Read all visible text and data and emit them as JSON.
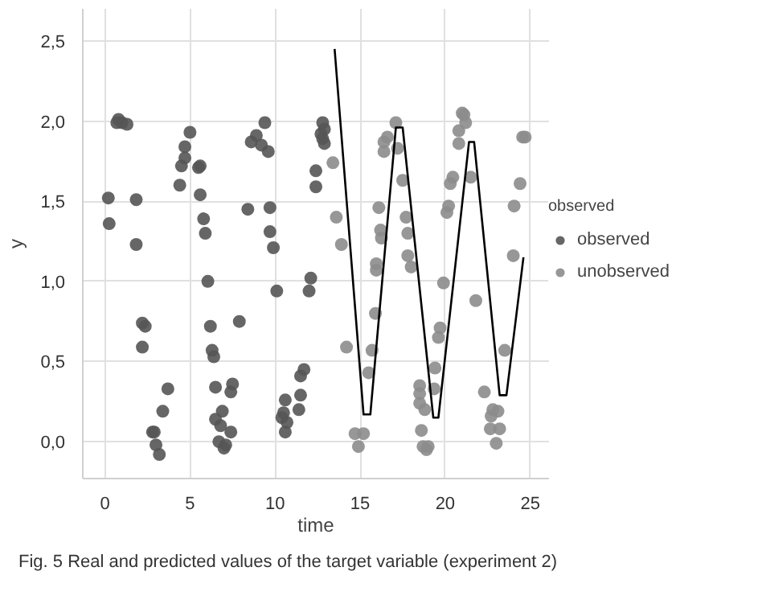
{
  "chart_data": {
    "type": "scatter",
    "xlabel": "time",
    "ylabel": "y",
    "legend_title": "observed",
    "annotations": [
      "Fig. 5 Real and predicted values of the target variable (experiment 2)"
    ],
    "xlim": [
      -1.3,
      26.1
    ],
    "ylim": [
      -0.23,
      2.7
    ],
    "xticks": [
      0,
      5,
      10,
      15,
      20,
      25
    ],
    "yticks": [
      {
        "value": 0,
        "label": "0,0"
      },
      {
        "value": 0.5,
        "label": "0,5"
      },
      {
        "value": 1,
        "label": "1,0"
      },
      {
        "value": 1.5,
        "label": "1,5"
      },
      {
        "value": 2,
        "label": "2,0"
      },
      {
        "value": 2.5,
        "label": "2,5"
      }
    ],
    "grid": true,
    "legend": "right",
    "marker": "circle",
    "series": [
      {
        "name": "observed",
        "color": "#555555",
        "x": [
          0.2,
          0.25,
          0.7,
          1.0,
          1.3,
          0.8,
          1.84,
          1.84,
          2.2,
          2.37,
          2.2,
          2.8,
          2.9,
          3.0,
          3.2,
          3.4,
          3.7,
          4.4,
          4.5,
          4.7,
          4.7,
          5.0,
          5.5,
          5.6,
          5.6,
          5.8,
          5.9,
          6.05,
          6.2,
          6.3,
          6.4,
          6.5,
          6.5,
          6.8,
          6.9,
          6.7,
          7.0,
          7.1,
          7.4,
          7.5,
          7.4,
          7.9,
          8.4,
          8.6,
          8.9,
          9.2,
          9.4,
          9.6,
          9.7,
          9.7,
          9.9,
          10.1,
          10.5,
          10.4,
          10.6,
          10.7,
          10.6,
          11.4,
          11.5,
          11.5,
          11.7,
          12.0,
          12.1,
          12.4,
          12.4,
          12.7,
          12.8,
          12.9,
          12.8,
          12.9
        ],
        "values": [
          1.52,
          1.36,
          1.99,
          1.99,
          1.98,
          2.01,
          1.51,
          1.23,
          0.74,
          0.72,
          0.59,
          0.06,
          0.06,
          -0.02,
          -0.08,
          0.19,
          0.33,
          1.6,
          1.72,
          1.77,
          1.84,
          1.93,
          1.71,
          1.72,
          1.54,
          1.39,
          1.3,
          1.0,
          0.72,
          0.57,
          0.53,
          0.34,
          0.14,
          0.1,
          0.19,
          0.0,
          -0.04,
          -0.02,
          0.31,
          0.36,
          0.06,
          0.75,
          1.45,
          1.87,
          1.91,
          1.85,
          1.99,
          1.81,
          1.46,
          1.31,
          1.21,
          0.94,
          0.18,
          0.15,
          0.26,
          0.12,
          0.06,
          0.2,
          0.29,
          0.41,
          0.45,
          0.94,
          1.02,
          1.69,
          1.59,
          1.92,
          1.89,
          1.95,
          1.99,
          1.86
        ]
      },
      {
        "name": "unobserved",
        "color": "#8c8c8c",
        "x": [
          13.4,
          13.6,
          13.9,
          14.2,
          14.7,
          15.2,
          14.9,
          15.5,
          15.7,
          15.9,
          15.95,
          15.95,
          16.1,
          16.2,
          16.25,
          16.4,
          16.6,
          16.4,
          17.1,
          17.2,
          17.5,
          17.7,
          17.8,
          17.8,
          18.0,
          18.5,
          18.5,
          18.5,
          18.6,
          18.8,
          18.7,
          18.9,
          19.0,
          19.4,
          19.35,
          19.6,
          19.7,
          19.9,
          20.1,
          20.2,
          20.3,
          20.45,
          20.8,
          20.8,
          21.0,
          21.1,
          21.2,
          21.5,
          21.8,
          22.3,
          22.65,
          22.7,
          22.8,
          23.0,
          23.1,
          23.2,
          23.5,
          24.0,
          24.05,
          24.4,
          24.55,
          24.7
        ],
        "values": [
          1.74,
          1.4,
          1.23,
          0.59,
          0.05,
          0.05,
          -0.03,
          0.43,
          0.57,
          0.8,
          1.07,
          1.11,
          1.46,
          1.32,
          1.27,
          1.87,
          1.9,
          1.81,
          1.99,
          1.83,
          1.63,
          1.4,
          1.3,
          1.16,
          1.09,
          0.35,
          0.3,
          0.24,
          0.07,
          0.2,
          -0.03,
          -0.05,
          -0.03,
          0.46,
          0.33,
          0.65,
          0.71,
          0.99,
          1.43,
          1.47,
          1.61,
          1.65,
          1.86,
          1.94,
          2.05,
          2.04,
          1.99,
          1.65,
          0.88,
          0.31,
          0.08,
          0.16,
          0.2,
          -0.01,
          0.19,
          0.08,
          0.57,
          1.16,
          1.47,
          1.61,
          1.9,
          1.9
        ]
      },
      {
        "type": "line",
        "color": "#000000",
        "marker": "none",
        "x": [
          13.5,
          15.2,
          15.6,
          17.1,
          17.5,
          19.3,
          19.6,
          21.4,
          21.7,
          23.2,
          23.6,
          24.6
        ],
        "values": [
          2.45,
          0.17,
          0.17,
          1.96,
          1.96,
          0.15,
          0.15,
          1.87,
          1.87,
          0.29,
          0.29,
          1.15
        ]
      }
    ]
  }
}
